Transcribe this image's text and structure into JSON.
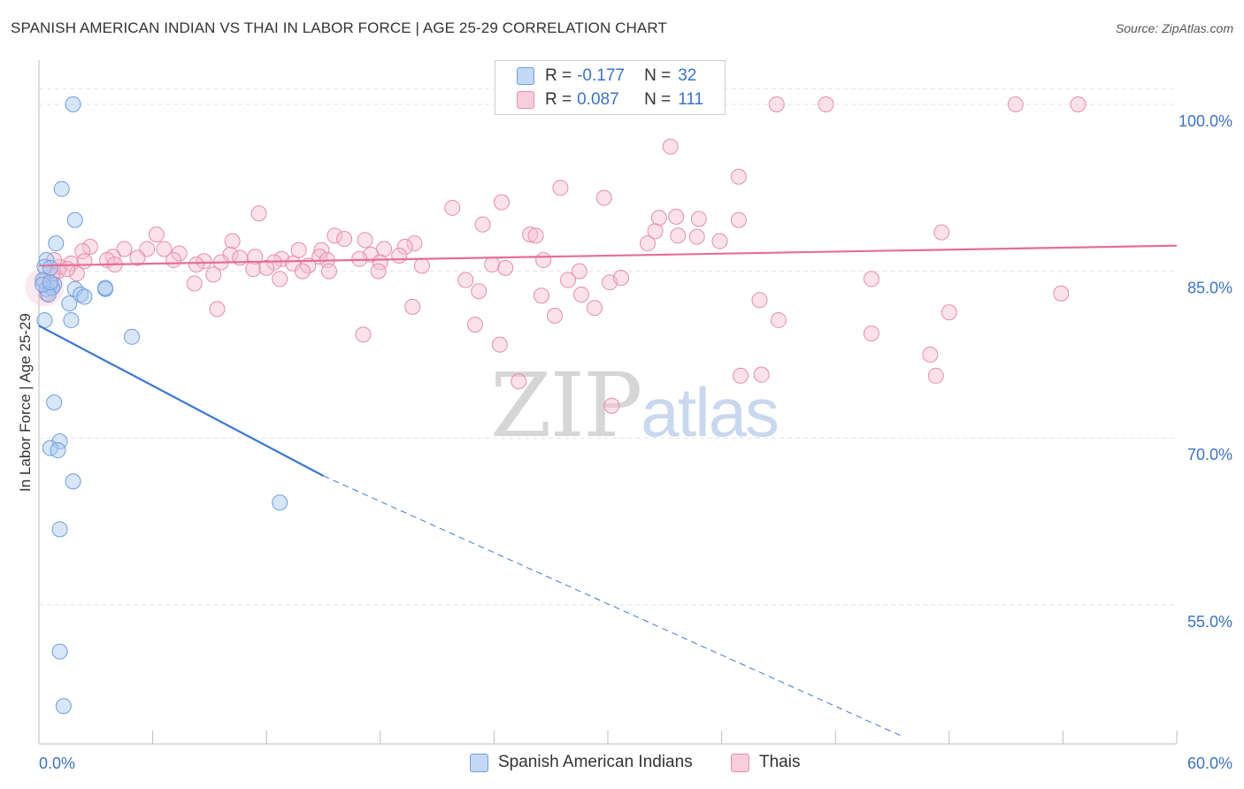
{
  "header": {
    "title": "SPANISH AMERICAN INDIAN VS THAI IN LABOR FORCE | AGE 25-29 CORRELATION CHART",
    "source_label": "Source: ZipAtlas.com"
  },
  "watermark": {
    "zip": "ZIP",
    "atlas": "atlas"
  },
  "legend": {
    "rows": [
      {
        "r_key": "R = ",
        "r_val": "-0.177",
        "n_key": "N = ",
        "n_val": "32"
      },
      {
        "r_key": "R = ",
        "r_val": "0.087",
        "n_key": "N = ",
        "n_val": "111"
      }
    ]
  },
  "bottom_legend": {
    "items": [
      "Spanish American Indians",
      "Thais"
    ]
  },
  "colors": {
    "blue_fill": "#a9c8f0",
    "blue_stroke": "#6d9ee0",
    "blue_line": "#3b78d0",
    "pink_fill": "#f6bed0",
    "pink_stroke": "#e58cab",
    "pink_line": "#e46e99",
    "tick_label": "#3d72c8",
    "grid": "#e3e3e3"
  },
  "chart_data": {
    "type": "scatter",
    "title": "SPANISH AMERICAN INDIAN VS THAI IN LABOR FORCE | AGE 25-29 CORRELATION CHART",
    "xlabel": "",
    "ylabel": "In Labor Force | Age 25-29",
    "xlim": [
      0,
      60
    ],
    "ylim": [
      42.5,
      103.5
    ],
    "y_ticks": [
      100,
      85,
      70,
      55
    ],
    "y_tick_labels": [
      "100.0%",
      "85.0%",
      "70.0%",
      "55.0%"
    ],
    "x_tick_labels": [
      "0.0%",
      "60.0%"
    ],
    "grid": true,
    "legend_position": "top-center",
    "series": [
      {
        "name": "Spanish American Indians",
        "color": "#a9c8f0",
        "r": -0.177,
        "n": 32,
        "trend": {
          "x": [
            0,
            15
          ],
          "y": [
            80.1,
            66.6
          ],
          "dashed_to": [
            45.5,
            43.2
          ]
        },
        "points": [
          [
            1.8,
            100.0
          ],
          [
            1.2,
            92.4
          ],
          [
            1.9,
            89.6
          ],
          [
            0.9,
            87.5
          ],
          [
            0.4,
            86.0
          ],
          [
            0.3,
            85.4
          ],
          [
            0.6,
            85.3
          ],
          [
            0.2,
            84.2
          ],
          [
            0.8,
            83.8
          ],
          [
            0.4,
            83.4
          ],
          [
            0.7,
            83.5
          ],
          [
            1.9,
            83.4
          ],
          [
            3.5,
            83.4
          ],
          [
            3.5,
            83.5
          ],
          [
            2.2,
            82.9
          ],
          [
            2.4,
            82.7
          ],
          [
            0.5,
            82.9
          ],
          [
            1.6,
            82.1
          ],
          [
            0.3,
            80.6
          ],
          [
            1.7,
            80.6
          ],
          [
            4.9,
            79.1
          ],
          [
            0.8,
            73.2
          ],
          [
            1.1,
            69.7
          ],
          [
            0.6,
            69.1
          ],
          [
            1.0,
            68.9
          ],
          [
            1.8,
            66.1
          ],
          [
            12.7,
            64.2
          ],
          [
            1.1,
            61.8
          ],
          [
            1.1,
            50.8
          ],
          [
            1.3,
            45.9
          ],
          [
            0.2,
            83.8
          ],
          [
            0.6,
            84.0
          ]
        ]
      },
      {
        "name": "Thais",
        "color": "#f6bed0",
        "r": 0.087,
        "n": 111,
        "trend": {
          "x": [
            0,
            60
          ],
          "y": [
            85.5,
            87.3
          ]
        },
        "points": [
          [
            38.9,
            100.0
          ],
          [
            41.5,
            100.0
          ],
          [
            51.5,
            100.0
          ],
          [
            54.8,
            100.0
          ],
          [
            33.3,
            96.2
          ],
          [
            36.9,
            93.5
          ],
          [
            27.5,
            92.5
          ],
          [
            29.8,
            91.6
          ],
          [
            24.4,
            91.2
          ],
          [
            21.8,
            90.7
          ],
          [
            11.6,
            90.2
          ],
          [
            32.7,
            89.8
          ],
          [
            34.8,
            89.7
          ],
          [
            36.9,
            89.6
          ],
          [
            33.6,
            89.9
          ],
          [
            23.4,
            89.2
          ],
          [
            32.5,
            88.6
          ],
          [
            25.9,
            88.3
          ],
          [
            47.6,
            88.5
          ],
          [
            33.7,
            88.2
          ],
          [
            34.7,
            88.1
          ],
          [
            35.9,
            87.7
          ],
          [
            15.6,
            88.2
          ],
          [
            16.1,
            87.9
          ],
          [
            17.2,
            87.8
          ],
          [
            6.2,
            88.3
          ],
          [
            10.2,
            87.7
          ],
          [
            32.1,
            87.5
          ],
          [
            19.8,
            87.5
          ],
          [
            2.7,
            87.2
          ],
          [
            4.5,
            87.0
          ],
          [
            5.7,
            87.0
          ],
          [
            6.6,
            87.0
          ],
          [
            19.3,
            87.2
          ],
          [
            18.2,
            87.0
          ],
          [
            13.7,
            86.9
          ],
          [
            14.9,
            86.9
          ],
          [
            2.3,
            86.8
          ],
          [
            7.4,
            86.6
          ],
          [
            10.1,
            86.5
          ],
          [
            14.8,
            86.3
          ],
          [
            17.5,
            86.5
          ],
          [
            19.0,
            86.4
          ],
          [
            3.9,
            86.3
          ],
          [
            5.2,
            86.2
          ],
          [
            10.6,
            86.2
          ],
          [
            11.4,
            86.3
          ],
          [
            12.8,
            86.1
          ],
          [
            15.2,
            86.0
          ],
          [
            16.9,
            86.1
          ],
          [
            3.6,
            86.0
          ],
          [
            7.1,
            86.0
          ],
          [
            8.7,
            85.9
          ],
          [
            9.6,
            85.8
          ],
          [
            12.4,
            85.8
          ],
          [
            18.0,
            85.8
          ],
          [
            26.6,
            86.0
          ],
          [
            1.7,
            85.7
          ],
          [
            4.0,
            85.6
          ],
          [
            8.3,
            85.6
          ],
          [
            13.4,
            85.7
          ],
          [
            14.2,
            85.5
          ],
          [
            20.2,
            85.5
          ],
          [
            23.9,
            85.6
          ],
          [
            1.1,
            85.4
          ],
          [
            11.3,
            85.2
          ],
          [
            12.0,
            85.3
          ],
          [
            13.9,
            85.0
          ],
          [
            15.3,
            85.0
          ],
          [
            17.9,
            85.0
          ],
          [
            1.0,
            85.0
          ],
          [
            2.0,
            84.8
          ],
          [
            24.6,
            85.3
          ],
          [
            28.5,
            85.0
          ],
          [
            0.7,
            84.6
          ],
          [
            9.2,
            84.7
          ],
          [
            12.7,
            84.3
          ],
          [
            22.5,
            84.2
          ],
          [
            27.9,
            84.2
          ],
          [
            30.1,
            84.0
          ],
          [
            30.7,
            84.4
          ],
          [
            43.9,
            84.3
          ],
          [
            8.2,
            83.9
          ],
          [
            0.6,
            83.8
          ],
          [
            23.2,
            83.2
          ],
          [
            28.6,
            82.9
          ],
          [
            26.5,
            82.8
          ],
          [
            53.9,
            83.0
          ],
          [
            38.0,
            82.4
          ],
          [
            19.7,
            81.8
          ],
          [
            9.4,
            81.6
          ],
          [
            29.3,
            81.7
          ],
          [
            48.0,
            81.3
          ],
          [
            27.2,
            81.0
          ],
          [
            39.0,
            80.6
          ],
          [
            23.0,
            80.2
          ],
          [
            17.1,
            79.3
          ],
          [
            43.9,
            79.4
          ],
          [
            24.3,
            78.4
          ],
          [
            47.0,
            77.5
          ],
          [
            38.1,
            75.7
          ],
          [
            37.0,
            75.6
          ],
          [
            47.3,
            75.6
          ],
          [
            25.3,
            75.1
          ],
          [
            30.2,
            72.9
          ],
          [
            0.4,
            83.0
          ],
          [
            0.3,
            84.1
          ],
          [
            1.5,
            85.2
          ],
          [
            2.4,
            85.9
          ],
          [
            0.8,
            86.0
          ],
          [
            26.2,
            88.2
          ]
        ]
      }
    ]
  }
}
